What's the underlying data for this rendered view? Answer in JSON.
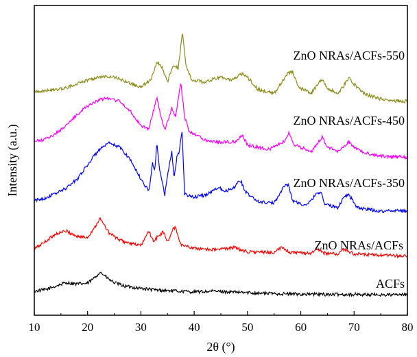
{
  "chart_data": {
    "type": "line",
    "xlabel": "2θ (°)",
    "ylabel": "Intensity (a.u.)",
    "xlim": [
      10,
      80
    ],
    "xticks": [
      10,
      20,
      30,
      40,
      50,
      60,
      70,
      80
    ],
    "yticks": [],
    "grid": false,
    "legend": "labels placed beside each curve",
    "series": [
      {
        "name": "ACFs",
        "color": "#000000",
        "offset": 0,
        "points": [
          [
            10,
            0.12
          ],
          [
            12,
            0.16
          ],
          [
            14,
            0.26
          ],
          [
            16,
            0.36
          ],
          [
            18,
            0.32
          ],
          [
            20,
            0.34
          ],
          [
            21.5,
            0.52
          ],
          [
            22.3,
            0.66
          ],
          [
            23,
            0.58
          ],
          [
            24,
            0.45
          ],
          [
            25,
            0.36
          ],
          [
            27,
            0.26
          ],
          [
            30,
            0.2
          ],
          [
            33,
            0.15
          ],
          [
            36,
            0.13
          ],
          [
            40,
            0.1
          ],
          [
            44,
            0.12
          ],
          [
            48,
            0.09
          ],
          [
            52,
            0.07
          ],
          [
            56,
            0.05
          ],
          [
            60,
            0.04
          ],
          [
            65,
            0.03
          ],
          [
            70,
            0.03
          ],
          [
            75,
            0.02
          ],
          [
            80,
            0.02
          ]
        ]
      },
      {
        "name": "ZnO NRAs/ACFs",
        "color": "#ff0000",
        "offset": 1,
        "points": [
          [
            10,
            0.3
          ],
          [
            12,
            0.5
          ],
          [
            14,
            0.72
          ],
          [
            16,
            0.8
          ],
          [
            18,
            0.65
          ],
          [
            20,
            0.62
          ],
          [
            21.5,
            0.95
          ],
          [
            22.3,
            1.15
          ],
          [
            23,
            1.0
          ],
          [
            24,
            0.75
          ],
          [
            26,
            0.55
          ],
          [
            28,
            0.45
          ],
          [
            30,
            0.4
          ],
          [
            31.5,
            0.78
          ],
          [
            32.5,
            0.5
          ],
          [
            33,
            0.62
          ],
          [
            34.2,
            0.78
          ],
          [
            35,
            0.48
          ],
          [
            36,
            0.85
          ],
          [
            36.5,
            0.9
          ],
          [
            37.5,
            0.42
          ],
          [
            40,
            0.32
          ],
          [
            44,
            0.28
          ],
          [
            47.5,
            0.34
          ],
          [
            50,
            0.22
          ],
          [
            55,
            0.2
          ],
          [
            56.5,
            0.35
          ],
          [
            58,
            0.2
          ],
          [
            62,
            0.18
          ],
          [
            63,
            0.3
          ],
          [
            64.5,
            0.18
          ],
          [
            67,
            0.16
          ],
          [
            68,
            0.28
          ],
          [
            69,
            0.24
          ],
          [
            70,
            0.16
          ],
          [
            75,
            0.12
          ],
          [
            80,
            0.1
          ]
        ]
      },
      {
        "name": "ZnO NRAs/ACFs-350",
        "color": "#0000ff",
        "offset": 2.2,
        "points": [
          [
            10,
            0.45
          ],
          [
            12,
            0.52
          ],
          [
            14,
            0.65
          ],
          [
            16,
            0.8
          ],
          [
            18,
            1.05
          ],
          [
            20,
            1.45
          ],
          [
            22,
            1.85
          ],
          [
            24,
            2.05
          ],
          [
            26,
            1.95
          ],
          [
            28,
            1.6
          ],
          [
            30,
            1.05
          ],
          [
            31.5,
            0.72
          ],
          [
            32.2,
            1.5
          ],
          [
            32.6,
            1.25
          ],
          [
            33,
            2.1
          ],
          [
            33.5,
            1.3
          ],
          [
            34.5,
            0.6
          ],
          [
            35,
            1.2
          ],
          [
            35.8,
            1.8
          ],
          [
            36.2,
            1.1
          ],
          [
            36.8,
            1.7
          ],
          [
            37.2,
            1.8
          ],
          [
            37.7,
            2.45
          ],
          [
            38.2,
            0.62
          ],
          [
            40,
            0.55
          ],
          [
            42,
            0.6
          ],
          [
            44.5,
            0.82
          ],
          [
            46,
            0.72
          ],
          [
            47.5,
            0.82
          ],
          [
            48,
            0.95
          ],
          [
            48.8,
            1.0
          ],
          [
            49.5,
            0.7
          ],
          [
            52,
            0.42
          ],
          [
            55,
            0.38
          ],
          [
            56.8,
            0.85
          ],
          [
            57.6,
            0.9
          ],
          [
            58.5,
            0.45
          ],
          [
            61,
            0.3
          ],
          [
            63,
            0.65
          ],
          [
            63.8,
            0.7
          ],
          [
            64.5,
            0.35
          ],
          [
            67,
            0.25
          ],
          [
            68,
            0.55
          ],
          [
            69,
            0.62
          ],
          [
            69.8,
            0.45
          ],
          [
            70.5,
            0.25
          ],
          [
            75,
            0.15
          ],
          [
            78,
            0.18
          ],
          [
            80,
            0.15
          ]
        ]
      },
      {
        "name": "ZnO NRAs/ACFs-450",
        "color": "#ff00ff",
        "offset": 3.7,
        "points": [
          [
            10,
            0.6
          ],
          [
            12,
            0.65
          ],
          [
            14,
            0.82
          ],
          [
            16,
            1.05
          ],
          [
            18,
            1.35
          ],
          [
            20,
            1.6
          ],
          [
            22,
            1.75
          ],
          [
            24,
            1.82
          ],
          [
            26,
            1.72
          ],
          [
            28,
            1.45
          ],
          [
            30,
            1.05
          ],
          [
            31.5,
            0.95
          ],
          [
            33,
            1.85
          ],
          [
            33.8,
            1.25
          ],
          [
            34.5,
            0.92
          ],
          [
            35.8,
            1.52
          ],
          [
            36.5,
            1.3
          ],
          [
            37.5,
            2.25
          ],
          [
            38.2,
            1.3
          ],
          [
            39,
            0.9
          ],
          [
            42,
            0.65
          ],
          [
            45,
            0.58
          ],
          [
            48,
            0.6
          ],
          [
            49,
            0.78
          ],
          [
            50,
            0.5
          ],
          [
            54,
            0.38
          ],
          [
            57,
            0.62
          ],
          [
            57.8,
            0.85
          ],
          [
            58.8,
            0.5
          ],
          [
            62,
            0.32
          ],
          [
            64,
            0.72
          ],
          [
            65,
            0.45
          ],
          [
            67,
            0.32
          ],
          [
            69,
            0.6
          ],
          [
            70,
            0.45
          ],
          [
            72,
            0.28
          ],
          [
            76,
            0.18
          ],
          [
            80,
            0.16
          ]
        ]
      },
      {
        "name": "ZnO NRAs/ACFs-550",
        "color": "#8b8b1a",
        "offset": 5.2,
        "points": [
          [
            10,
            0.5
          ],
          [
            12,
            0.52
          ],
          [
            14,
            0.55
          ],
          [
            16,
            0.6
          ],
          [
            18,
            0.72
          ],
          [
            20,
            0.82
          ],
          [
            22,
            0.9
          ],
          [
            24,
            0.92
          ],
          [
            26,
            0.85
          ],
          [
            28,
            0.72
          ],
          [
            30,
            0.62
          ],
          [
            32,
            0.85
          ],
          [
            33,
            1.35
          ],
          [
            34,
            1.15
          ],
          [
            35,
            0.75
          ],
          [
            36,
            1.25
          ],
          [
            37,
            1.15
          ],
          [
            37.8,
            2.15
          ],
          [
            38.5,
            1.2
          ],
          [
            39.5,
            0.82
          ],
          [
            42,
            0.75
          ],
          [
            45,
            0.92
          ],
          [
            47,
            0.8
          ],
          [
            49,
            1.0
          ],
          [
            50,
            0.9
          ],
          [
            52,
            0.55
          ],
          [
            55,
            0.45
          ],
          [
            57.5,
            1.0
          ],
          [
            58.5,
            1.05
          ],
          [
            59.5,
            0.62
          ],
          [
            62,
            0.45
          ],
          [
            64,
            0.85
          ],
          [
            65,
            0.6
          ],
          [
            67,
            0.42
          ],
          [
            69,
            0.88
          ],
          [
            70,
            0.7
          ],
          [
            72,
            0.42
          ],
          [
            76,
            0.25
          ],
          [
            80,
            0.22
          ]
        ]
      }
    ]
  }
}
